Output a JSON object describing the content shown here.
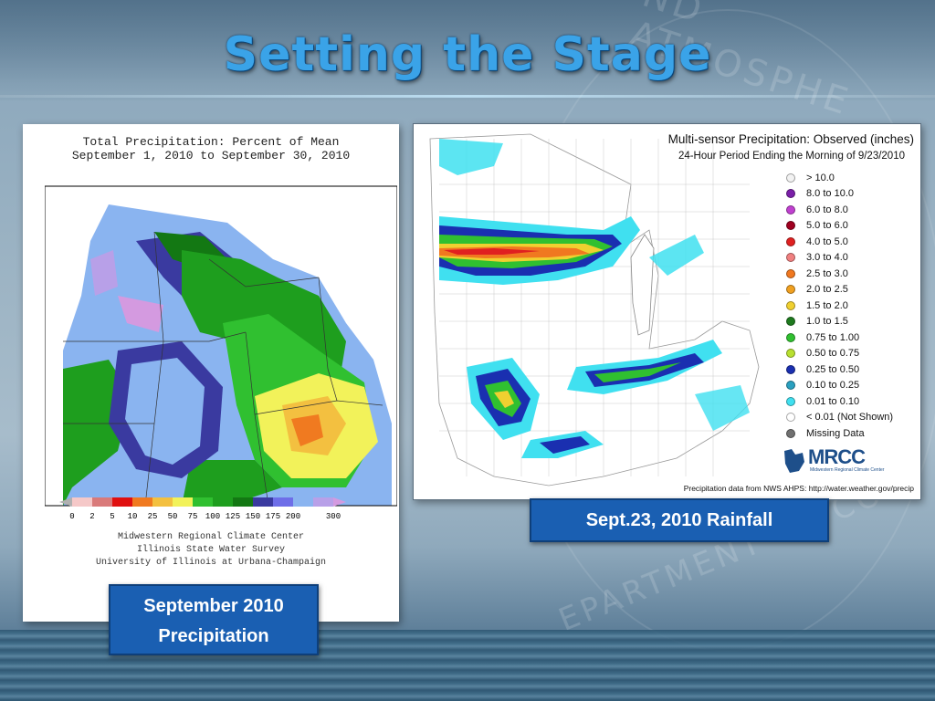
{
  "slide": {
    "title": "Setting the Stage",
    "watermark_text": "ND ATMOSPHE",
    "watermark_text_2": "EPARTMENT OF CO"
  },
  "left_map": {
    "title_line1": "Total Precipitation: Percent of Mean",
    "title_line2": "September 1, 2010 to September 30, 2010",
    "scale_labels": [
      "0",
      "2",
      "5",
      "10",
      "25",
      "50",
      "75",
      "100",
      "125",
      "150",
      "175",
      "200",
      "300"
    ],
    "scale_colors": [
      "#b0b0b0",
      "#f5c8c8",
      "#d97a7a",
      "#e01010",
      "#f07a20",
      "#f3c040",
      "#f2f25a",
      "#30c030",
      "#1e9e1e",
      "#137813",
      "#3a3aa0",
      "#6e6ee8",
      "#8ab4f0",
      "#b8a0e8",
      "#d49ae0"
    ],
    "credit_line1": "Midwestern Regional Climate Center",
    "credit_line2": "Illinois State Water Survey",
    "credit_line3": "University of Illinois at Urbana-Champaign",
    "caption_line1": "September 2010",
    "caption_line2": "Precipitation"
  },
  "right_map": {
    "title_line1": "Multi-sensor Precipitation: Observed (inches)",
    "title_line2": "24-Hour Period Ending the Morning of 9/23/2010",
    "legend": [
      {
        "label": "> 10.0",
        "color": "#f2f2f2"
      },
      {
        "label": "8.0 to 10.0",
        "color": "#7a1fa8"
      },
      {
        "label": "6.0 to 8.0",
        "color": "#c040d0"
      },
      {
        "label": "5.0 to 6.0",
        "color": "#a00020"
      },
      {
        "label": "4.0 to 5.0",
        "color": "#e02020"
      },
      {
        "label": "3.0 to 4.0",
        "color": "#f08080"
      },
      {
        "label": "2.5 to 3.0",
        "color": "#f07820"
      },
      {
        "label": "2.0 to 2.5",
        "color": "#f0a020"
      },
      {
        "label": "1.5 to 2.0",
        "color": "#f0d030"
      },
      {
        "label": "1.0 to 1.5",
        "color": "#1e7a1e"
      },
      {
        "label": "0.75 to 1.00",
        "color": "#30c030"
      },
      {
        "label": "0.50 to 0.75",
        "color": "#b8e030"
      },
      {
        "label": "0.25 to 0.50",
        "color": "#1a2fb0"
      },
      {
        "label": "0.10 to 0.25",
        "color": "#2aa0c0"
      },
      {
        "label": "0.01 to 0.10",
        "color": "#40e0f0"
      },
      {
        "label": "< 0.01 (Not Shown)",
        "color": "#ffffff"
      },
      {
        "label": "Missing Data",
        "color": "#707070"
      }
    ],
    "logo_text": "MRCC",
    "logo_subtext": "Midwestern Regional Climate Center",
    "footer": "Precipitation data from NWS AHPS:  http://water.weather.gov/precip",
    "caption": "Sept.23, 2010 Rainfall"
  }
}
